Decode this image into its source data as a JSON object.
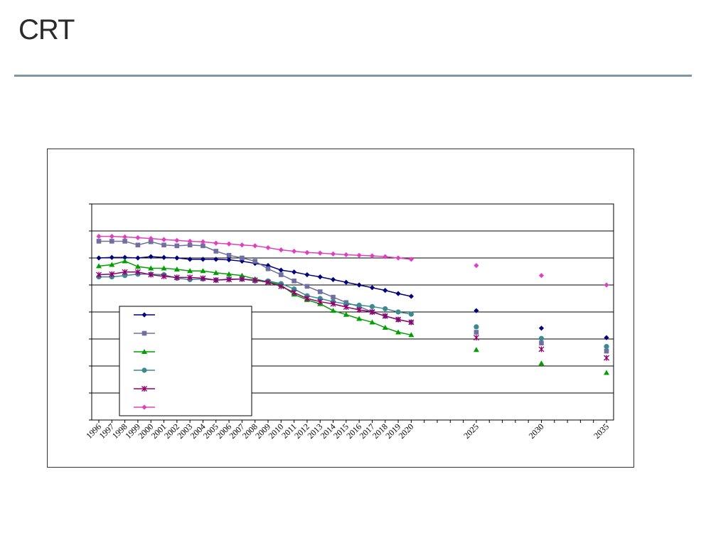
{
  "logo": {
    "text": "CRT"
  },
  "chart_data": {
    "type": "line",
    "title": "",
    "xlabel": "",
    "ylabel": "",
    "x_tick_labels": [
      "1996",
      "1997",
      "1998",
      "1999",
      "2000",
      "2001",
      "2002",
      "2003",
      "2004",
      "2005",
      "2006",
      "2007",
      "2008",
      "2009",
      "2010",
      "2011",
      "2012",
      "2013",
      "2014",
      "2015",
      "2016",
      "2017",
      "2018",
      "2019",
      "2020",
      "2025",
      "2030",
      "2035"
    ],
    "x_range": [
      1996,
      2035
    ],
    "y_range": [
      0,
      8
    ],
    "y_gridlines": [
      1,
      2,
      3,
      4,
      5,
      6,
      7
    ],
    "grid": true,
    "legend": {
      "placement": "bottom-left",
      "entries_labeled": false
    },
    "series": [
      {
        "marker": "diamond",
        "color": "#000080",
        "x": [
          1996,
          1997,
          1998,
          1999,
          2000,
          2001,
          2002,
          2003,
          2004,
          2005,
          2006,
          2007,
          2008,
          2009,
          2010,
          2011,
          2012,
          2013,
          2014,
          2015,
          2016,
          2017,
          2018,
          2019,
          2020
        ],
        "y": [
          6.0,
          6.02,
          6.02,
          6.0,
          6.05,
          6.02,
          6.0,
          5.95,
          5.95,
          5.95,
          5.93,
          5.88,
          5.8,
          5.72,
          5.55,
          5.48,
          5.38,
          5.3,
          5.2,
          5.1,
          5.0,
          4.9,
          4.8,
          4.68,
          4.58
        ],
        "projection": {
          "x": [
            2025,
            2030,
            2035
          ],
          "y": [
            4.05,
            3.4,
            3.05
          ]
        }
      },
      {
        "marker": "square",
        "color": "#7070a0",
        "x": [
          1996,
          1997,
          1998,
          1999,
          2000,
          2001,
          2002,
          2003,
          2004,
          2005,
          2006,
          2007,
          2008,
          2009,
          2010,
          2011,
          2012,
          2013,
          2014,
          2015,
          2016,
          2017,
          2018,
          2019,
          2020
        ],
        "y": [
          6.62,
          6.62,
          6.62,
          6.48,
          6.6,
          6.48,
          6.45,
          6.48,
          6.45,
          6.25,
          6.1,
          6.0,
          5.88,
          5.6,
          5.38,
          5.15,
          4.95,
          4.75,
          4.55,
          4.35,
          4.2,
          4.0,
          3.85,
          3.72,
          3.62
        ],
        "projection": {
          "x": [
            2025,
            2030,
            2035
          ],
          "y": [
            3.25,
            2.85,
            2.55
          ]
        }
      },
      {
        "marker": "triangle",
        "color": "#00a000",
        "x": [
          1996,
          1997,
          1998,
          1999,
          2000,
          2001,
          2002,
          2003,
          2004,
          2005,
          2006,
          2007,
          2008,
          2009,
          2010,
          2011,
          2012,
          2013,
          2014,
          2015,
          2016,
          2017,
          2018,
          2019,
          2020
        ],
        "y": [
          5.7,
          5.75,
          5.88,
          5.68,
          5.62,
          5.62,
          5.58,
          5.52,
          5.52,
          5.45,
          5.4,
          5.35,
          5.22,
          5.12,
          5.0,
          4.65,
          4.45,
          4.3,
          4.05,
          3.9,
          3.75,
          3.62,
          3.42,
          3.25,
          3.15
        ],
        "projection": {
          "x": [
            2025,
            2030,
            2035
          ],
          "y": [
            2.6,
            2.1,
            1.75
          ]
        }
      },
      {
        "marker": "circle",
        "color": "#3a8a90",
        "x": [
          1996,
          1997,
          1998,
          1999,
          2000,
          2001,
          2002,
          2003,
          2004,
          2005,
          2006,
          2007,
          2008,
          2009,
          2010,
          2011,
          2012,
          2013,
          2014,
          2015,
          2016,
          2017,
          2018,
          2019,
          2020
        ],
        "y": [
          5.3,
          5.3,
          5.35,
          5.4,
          5.4,
          5.38,
          5.25,
          5.2,
          5.22,
          5.18,
          5.22,
          5.22,
          5.15,
          5.15,
          5.05,
          4.85,
          4.6,
          4.5,
          4.38,
          4.3,
          4.25,
          4.2,
          4.12,
          4.0,
          3.92
        ],
        "projection": {
          "x": [
            2025,
            2030,
            2035
          ],
          "y": [
            3.45,
            3.02,
            2.72
          ]
        }
      },
      {
        "marker": "star",
        "color": "#900070",
        "x": [
          1996,
          1997,
          1998,
          1999,
          2000,
          2001,
          2002,
          2003,
          2004,
          2005,
          2006,
          2007,
          2008,
          2009,
          2010,
          2011,
          2012,
          2013,
          2014,
          2015,
          2016,
          2017,
          2018,
          2019,
          2020
        ],
        "y": [
          5.38,
          5.4,
          5.48,
          5.48,
          5.38,
          5.32,
          5.28,
          5.28,
          5.25,
          5.18,
          5.2,
          5.22,
          5.18,
          5.1,
          4.95,
          4.72,
          4.5,
          4.38,
          4.3,
          4.18,
          4.08,
          4.0,
          3.85,
          3.72,
          3.62
        ],
        "projection": {
          "x": [
            2025,
            2030,
            2035
          ],
          "y": [
            3.05,
            2.62,
            2.3
          ]
        }
      },
      {
        "marker": "diamond",
        "color": "#e040c0",
        "x": [
          1996,
          1997,
          1998,
          1999,
          2000,
          2001,
          2002,
          2003,
          2004,
          2005,
          2006,
          2007,
          2008,
          2009,
          2010,
          2011,
          2012,
          2013,
          2014,
          2015,
          2016,
          2017,
          2018,
          2019,
          2020
        ],
        "y": [
          6.8,
          6.8,
          6.78,
          6.75,
          6.72,
          6.68,
          6.65,
          6.62,
          6.6,
          6.55,
          6.52,
          6.48,
          6.45,
          6.38,
          6.3,
          6.25,
          6.2,
          6.18,
          6.15,
          6.12,
          6.1,
          6.08,
          6.05,
          6.0,
          5.95
        ],
        "projection": {
          "x": [
            2025,
            2030,
            2035
          ],
          "y": [
            5.72,
            5.35,
            5.0
          ]
        }
      }
    ]
  }
}
